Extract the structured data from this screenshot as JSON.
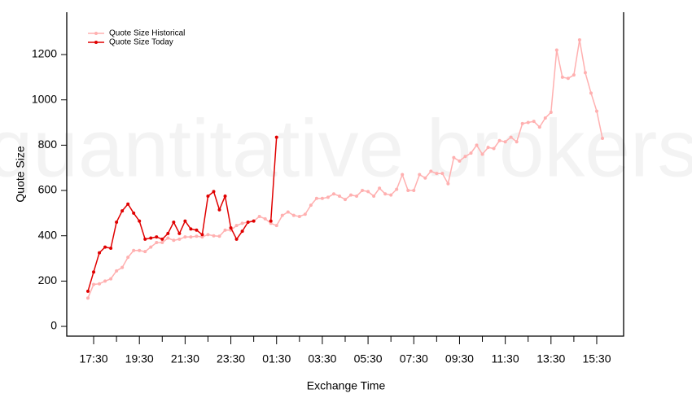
{
  "chart_data": {
    "type": "line",
    "watermark": "quantitative brokers",
    "xlabel": "Exchange Time",
    "ylabel": "Quote Size",
    "legend": "upper left",
    "categories": [
      null,
      "17:30",
      null,
      null,
      null,
      null,
      null,
      null,
      null,
      "19:30",
      null,
      null,
      null,
      null,
      null,
      null,
      null,
      "21:30",
      null,
      null,
      null,
      null,
      null,
      null,
      null,
      "23:30",
      null,
      null,
      null,
      null,
      null,
      null,
      null,
      "01:30",
      null,
      null,
      null,
      null,
      null,
      null,
      null,
      "03:30",
      null,
      null,
      null,
      null,
      null,
      null,
      null,
      "05:30",
      null,
      null,
      null,
      null,
      null,
      null,
      null,
      "07:30",
      null,
      null,
      null,
      null,
      null,
      null,
      null,
      "09:30",
      null,
      null,
      null,
      null,
      null,
      null,
      null,
      "11:30",
      null,
      null,
      null,
      null,
      null,
      null,
      null,
      "13:30",
      null,
      null,
      null,
      null,
      null,
      null,
      null,
      "15:30",
      null
    ],
    "series": [
      {
        "name": "Quote Size Historical",
        "color": "#ffb0b0",
        "values": [
          125,
          185,
          188,
          200,
          210,
          245,
          260,
          305,
          335,
          335,
          330,
          350,
          370,
          370,
          390,
          380,
          385,
          395,
          395,
          398,
          395,
          405,
          400,
          398,
          425,
          425,
          445,
          455,
          460,
          465,
          485,
          475,
          455,
          445,
          490,
          505,
          490,
          485,
          495,
          535,
          565,
          565,
          570,
          585,
          575,
          560,
          580,
          575,
          600,
          595,
          575,
          610,
          585,
          580,
          605,
          670,
          600,
          600,
          670,
          655,
          685,
          675,
          675,
          630,
          745,
          730,
          750,
          765,
          800,
          760,
          790,
          785,
          820,
          815,
          835,
          815,
          895,
          900,
          905,
          880,
          920,
          945,
          1220,
          1100,
          1095,
          1110,
          1265,
          1120,
          1030,
          950,
          830
        ]
      },
      {
        "name": "Quote Size Today",
        "color": "#e00000",
        "values": [
          155,
          240,
          325,
          350,
          345,
          460,
          510,
          540,
          500,
          465,
          385,
          390,
          395,
          385,
          410,
          460,
          410,
          465,
          430,
          425,
          405,
          575,
          595,
          515,
          575,
          435,
          385,
          420,
          460,
          465,
          null,
          null,
          465,
          835,
          null,
          null,
          null,
          null,
          null,
          null,
          null,
          null,
          null,
          null,
          null,
          null,
          null,
          null,
          null,
          null,
          null,
          null,
          null,
          null,
          null,
          null,
          null,
          null,
          null,
          null,
          null,
          null,
          null,
          null,
          null,
          null,
          null,
          null,
          null,
          null,
          null,
          null,
          null,
          null,
          null,
          null,
          null,
          null,
          null,
          null,
          null,
          null,
          null,
          null,
          null,
          null,
          null,
          null,
          null,
          null,
          null
        ]
      }
    ],
    "ylim": [
      -43,
      1387
    ],
    "yticks": [
      0,
      200,
      400,
      600,
      800,
      1000,
      1200
    ],
    "grid": false
  }
}
